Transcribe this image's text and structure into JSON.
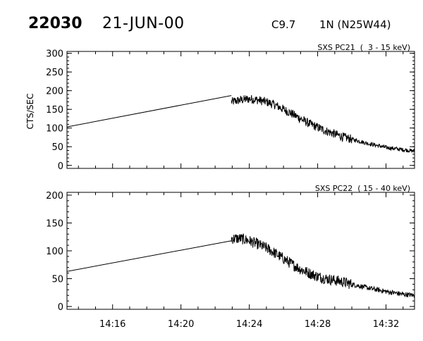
{
  "header": {
    "event_id": "22030",
    "date": "21-JUN-00",
    "flare_class": "C9.7",
    "flare_location": "1N (N25W44)"
  },
  "colors": {
    "line": "#000000",
    "axis": "#000000",
    "background": "#ffffff"
  },
  "chart_data": [
    {
      "type": "line",
      "title": "SXS PC21  (  3 - 15 keV)",
      "ylabel": "CTS/SEC",
      "xlabel": "",
      "xlim_minutes": [
        13.33,
        33.67
      ],
      "ylim": [
        -8,
        305
      ],
      "yticks": [
        0,
        50,
        100,
        150,
        200,
        250,
        300
      ],
      "xtick_labels": [],
      "grid": false,
      "series": [
        {
          "interpolated_gap": {
            "x": [
              13.33,
              22.95
            ],
            "y": [
              103,
              187
            ]
          },
          "observed_envelope": {
            "x": [
              22.95,
              23.5,
              24.0,
              24.5,
              25.0,
              25.5,
              26.0,
              26.5,
              27.0,
              27.5,
              28.0,
              28.5,
              29.0,
              29.5,
              30.0,
              31.0,
              32.0,
              33.0,
              33.67
            ],
            "y": [
              170,
              175,
              178,
              175,
              170,
              162,
              150,
              138,
              125,
              112,
              102,
              92,
              84,
              76,
              70,
              58,
              48,
              42,
              38
            ]
          },
          "noise_amplitude": 12
        }
      ]
    },
    {
      "type": "line",
      "title": "SXS PC22  ( 15 - 40 keV)",
      "ylabel": "",
      "xlabel": "",
      "xlim_minutes": [
        13.33,
        33.67
      ],
      "ylim": [
        -5,
        205
      ],
      "yticks": [
        0,
        50,
        100,
        150,
        200
      ],
      "xtick_labels": [
        "14:16",
        "14:20",
        "14:24",
        "14:28",
        "14:32"
      ],
      "grid": false,
      "series": [
        {
          "interpolated_gap": {
            "x": [
              13.33,
              22.95
            ],
            "y": [
              63,
              118
            ]
          },
          "observed_envelope": {
            "x": [
              22.95,
              23.5,
              24.0,
              24.5,
              25.0,
              25.5,
              26.0,
              26.5,
              27.0,
              27.5,
              28.0,
              28.5,
              29.0,
              29.5,
              30.0,
              31.0,
              32.0,
              33.0,
              33.67
            ],
            "y": [
              122,
              122,
              118,
              112,
              105,
              96,
              86,
              76,
              67,
              60,
              54,
              50,
              47,
              44,
              40,
              33,
              27,
              22,
              20
            ]
          },
          "noise_amplitude": 10
        }
      ]
    }
  ]
}
